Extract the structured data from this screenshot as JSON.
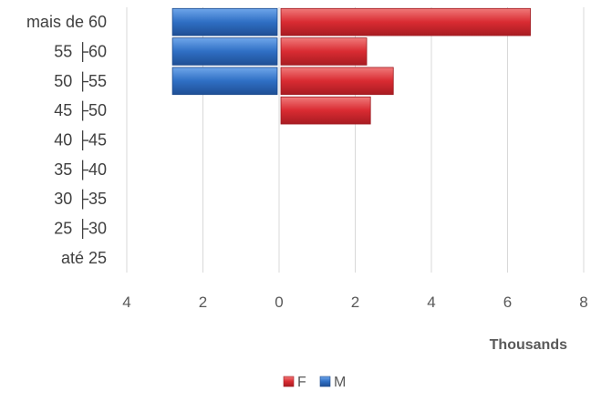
{
  "chart_data": {
    "type": "bar",
    "orientation": "horizontal",
    "categories": [
      "mais de 60",
      "55 ├60",
      "50 ├55",
      "45 ├50",
      "40 ├45",
      "35 ├40",
      "30 ├35",
      "25 ├30",
      "até 25"
    ],
    "series": [
      {
        "name": "F",
        "color": "#e03a3e",
        "values": [
          6.6,
          2.3,
          3.0,
          2.4,
          0,
          0,
          0,
          0,
          0
        ]
      },
      {
        "name": "M",
        "color": "#3a78c9",
        "values": [
          2.8,
          2.8,
          2.8,
          0,
          0,
          0,
          0,
          0,
          0
        ],
        "direction": "left"
      }
    ],
    "x_ticks": [
      "4",
      "2",
      "0",
      "2",
      "4",
      "6",
      "8"
    ],
    "xlim": [
      -4,
      8
    ],
    "x_unit_label": "Thousands",
    "grid": "vertical",
    "legend_position": "bottom"
  }
}
